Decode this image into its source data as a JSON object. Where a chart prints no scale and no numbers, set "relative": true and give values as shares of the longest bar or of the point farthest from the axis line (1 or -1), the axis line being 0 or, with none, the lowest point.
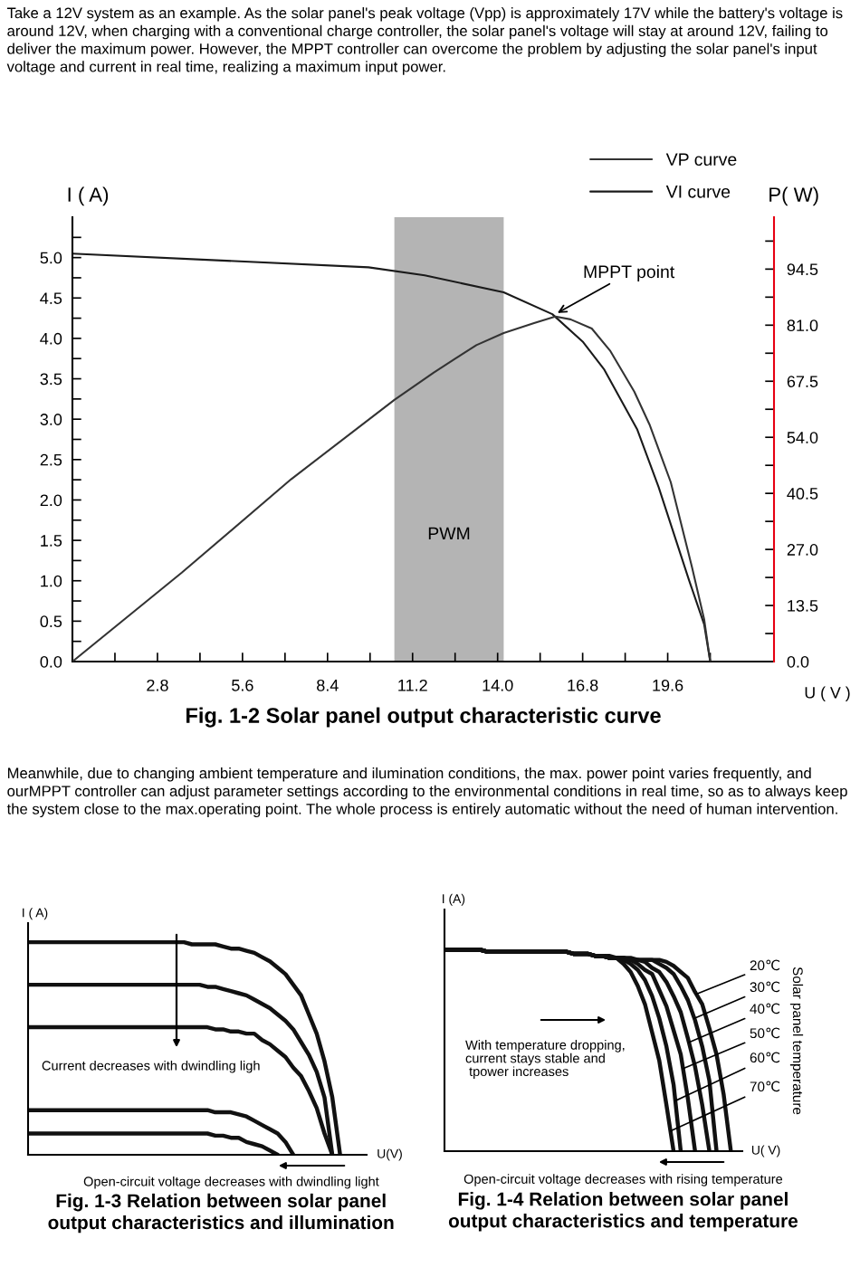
{
  "chart_data": [
    {
      "type": "line",
      "title": "Fig. 1-2 Solar panel output characteristic curve",
      "xlabel": "U ( V )",
      "ylabel": "I ( A)",
      "y2label": "P( W)",
      "xlim": [
        0,
        23.1
      ],
      "xticks": [
        {
          "value": 0,
          "label": null
        },
        {
          "value": 1.4,
          "label": null
        },
        2.8,
        {
          "value": 4.2,
          "label": null
        },
        5.6,
        {
          "value": 7.0,
          "label": null
        },
        8.4,
        {
          "value": 9.8,
          "label": null
        },
        11.2,
        {
          "value": 12.6,
          "label": null
        },
        {
          "value": 14,
          "label": "14.0"
        },
        {
          "value": 15.4,
          "label": null
        },
        16.8,
        {
          "value": 18.2,
          "label": null
        },
        19.6,
        {
          "value": 21.0,
          "label": null
        }
      ],
      "ylim": [
        0,
        5.5
      ],
      "yticks": [
        {
          "value": 0,
          "label": "0.0"
        },
        {
          "value": 0.25,
          "label": null
        },
        0.5,
        {
          "value": 0.75,
          "label": null
        },
        {
          "value": 1,
          "label": "1.0"
        },
        {
          "value": 1.25,
          "label": null
        },
        1.5,
        {
          "value": 1.75,
          "label": null
        },
        {
          "value": 2,
          "label": "2.0"
        },
        {
          "value": 2.25,
          "label": null
        },
        2.5,
        {
          "value": 2.75,
          "label": null
        },
        {
          "value": 3,
          "label": "3.0"
        },
        {
          "value": 3.25,
          "label": null
        },
        3.5,
        {
          "value": 3.75,
          "label": null
        },
        {
          "value": 4,
          "label": "4.0"
        },
        {
          "value": 4.25,
          "label": null
        },
        4.5,
        {
          "value": 4.75,
          "label": null
        },
        {
          "value": 5,
          "label": "5.0"
        },
        {
          "value": 5.25,
          "label": null
        }
      ],
      "y2lim": [
        0,
        107
      ],
      "y2ticks": [
        {
          "value": 0,
          "label": "0.0"
        },
        {
          "value": 6.75,
          "label": null
        },
        13.5,
        {
          "value": 20.25,
          "label": null
        },
        {
          "value": 27,
          "label": "27.0"
        },
        {
          "value": 33.75,
          "label": null
        },
        40.5,
        {
          "value": 47.25,
          "label": null
        },
        {
          "value": 54,
          "label": "54.0"
        },
        {
          "value": 60.75,
          "label": null
        },
        67.5,
        {
          "value": 74.25,
          "label": null
        },
        {
          "value": 81,
          "label": "81.0"
        },
        {
          "value": 87.75,
          "label": null
        },
        94.5,
        {
          "value": 101.25,
          "label": null
        }
      ],
      "legend": "top right",
      "bands": [
        {
          "axis": "x",
          "from": 10.6,
          "to": 14.2,
          "label": "PWM",
          "color": "#b4b4b4"
        }
      ],
      "annotations": [
        "Take a 12V system as an example. As the solar panel's peak voltage (Vpp) is approximately 17V while the battery's voltage is around 12V, when charging with a conventional charge controller, the solar panel's voltage will stay at around 12V, failing to deliver the maximum power. However, the MPPT controller can overcome the problem by adjusting the solar panel's input voltage and current in real time, realizing a maximum input power.",
        {
          "text": "MPPT point",
          "x": 15.9,
          "y": 4.3
        }
      ],
      "series": [
        {
          "name": "VP curve",
          "color": "#333333",
          "axis": "y2",
          "x": [
            0,
            3.6,
            7.2,
            10.6,
            11.9,
            12.6,
            13.3,
            14.2,
            15.2,
            15.9,
            16.4,
            17.1,
            17.7,
            18.5,
            19.0,
            19.7,
            20.4,
            20.8,
            21.0
          ],
          "values": [
            0,
            21.4,
            43.9,
            63.0,
            69.6,
            72.9,
            76.2,
            79.1,
            81.5,
            83.1,
            82.4,
            80.2,
            74.9,
            65.0,
            57.1,
            43.2,
            22.7,
            10.2,
            0
          ]
        },
        {
          "name": "VI curve",
          "color": "#1a1a1a",
          "x": [
            0,
            9.75,
            11.6,
            14.2,
            15.8,
            16.8,
            17.5,
            18.6,
            19.3,
            20.3,
            20.8,
            21.0
          ],
          "values": [
            5.05,
            4.88,
            4.78,
            4.57,
            4.3,
            3.96,
            3.62,
            2.87,
            2.16,
            1.01,
            0.46,
            0
          ]
        }
      ]
    },
    {
      "type": "line",
      "relative": true,
      "title": "Fig. 1-3 Relation between solar panel\noutput characteristics and illumination",
      "xlabel": "U(V)",
      "ylabel": "I ( A)",
      "categories": [
        null,
        null,
        null,
        null,
        null,
        null,
        null,
        null,
        null,
        null,
        null,
        null,
        null,
        null,
        null,
        null,
        null,
        null,
        null,
        null,
        null,
        null,
        null,
        null,
        null,
        null,
        null,
        null,
        null,
        null,
        null,
        null,
        null,
        null,
        null,
        null,
        null,
        null,
        null,
        null,
        null
      ],
      "annotations": [
        "Meanwhile, due to changing ambient temperature and ilumination conditions, the max. power point varies frequently, and ourMPPT controller can adjust parameter settings according to the environmental conditions in real time, so as to always keep the system close to the max.operating point. The whole process is entirely automatic without the need of human intervention.",
        "Current decreases with dwindling ligh",
        "Open-circuit voltage decreases with dwindling light"
      ],
      "series": [
        {
          "color": "#111111",
          "values": [
            1.0,
            1.0,
            1.0,
            1.0,
            1.0,
            1.0,
            1.0,
            1.0,
            1.0,
            1.0,
            1.0,
            1.0,
            1.0,
            1.0,
            1.0,
            1.0,
            1.0,
            1.0,
            1.0,
            1.0,
            1.0,
            0.99,
            0.99,
            0.99,
            0.99,
            0.98,
            0.97,
            0.97,
            0.96,
            0.95,
            0.93,
            0.91,
            0.88,
            0.85,
            0.8,
            0.75,
            0.66,
            0.57,
            0.44,
            0.27,
            0.0
          ]
        },
        {
          "color": "#111111",
          "values": [
            0.8,
            0.8,
            0.8,
            0.8,
            0.8,
            0.8,
            0.8,
            0.8,
            0.8,
            0.8,
            0.8,
            0.8,
            0.8,
            0.8,
            0.8,
            0.8,
            0.8,
            0.8,
            0.8,
            0.8,
            0.8,
            0.8,
            0.8,
            0.79,
            0.79,
            0.78,
            0.77,
            0.76,
            0.75,
            0.73,
            0.71,
            0.69,
            0.66,
            0.63,
            0.59,
            0.53,
            0.47,
            0.39,
            0.27,
            0,
            null
          ]
        },
        {
          "color": "#111111",
          "values": [
            0.6,
            0.6,
            0.6,
            0.6,
            0.6,
            0.6,
            0.6,
            0.6,
            0.6,
            0.6,
            0.6,
            0.6,
            0.6,
            0.6,
            0.6,
            0.6,
            0.6,
            0.6,
            0.6,
            0.6,
            0.6,
            0.6,
            0.6,
            0.6,
            0.59,
            0.59,
            0.58,
            0.58,
            0.57,
            0.57,
            0.54,
            0.52,
            0.49,
            0.46,
            0.41,
            0.37,
            0.3,
            0.22,
            0.1,
            0,
            null
          ]
        },
        {
          "color": "#111111",
          "values": [
            0.21,
            0.21,
            0.21,
            0.21,
            0.21,
            0.21,
            0.21,
            0.21,
            0.21,
            0.21,
            0.21,
            0.21,
            0.21,
            0.21,
            0.21,
            0.21,
            0.21,
            0.21,
            0.21,
            0.21,
            0.21,
            0.21,
            0.21,
            0.21,
            0.2,
            0.2,
            0.2,
            0.19,
            0.18,
            0.16,
            0.14,
            0.12,
            0.1,
            0.06,
            0,
            null,
            null,
            null,
            null,
            null,
            null
          ]
        },
        {
          "color": "#111111",
          "values": [
            0.1,
            0.1,
            0.1,
            0.1,
            0.1,
            0.1,
            0.1,
            0.1,
            0.1,
            0.1,
            0.1,
            0.1,
            0.1,
            0.1,
            0.1,
            0.1,
            0.1,
            0.1,
            0.1,
            0.1,
            0.1,
            0.1,
            0.1,
            0.1,
            0.09,
            0.09,
            0.08,
            0.08,
            0.06,
            0.05,
            0.04,
            0.02,
            0,
            null,
            null,
            null,
            null,
            null,
            null,
            null,
            null
          ]
        }
      ]
    },
    {
      "type": "line",
      "relative": true,
      "title": "Fig. 1-4 Relation between solar panel\noutput characteristics and temperature",
      "xlabel": "U( V)",
      "ylabel": "I (A)",
      "legend_title": "Solar panel temperature",
      "categories": [
        null,
        null,
        null,
        null,
        null,
        null,
        null,
        null,
        null,
        null,
        null,
        null,
        null,
        null,
        null,
        null,
        null,
        null,
        null,
        null,
        null,
        null,
        null,
        null,
        null,
        null,
        null,
        null,
        null,
        null,
        null,
        null,
        null,
        null,
        null,
        null,
        null,
        null,
        null,
        null,
        null
      ],
      "annotations": [
        "With temperature dropping,\ncurrent stays stable and\n tpower increases",
        "Open-circuit voltage decreases with rising temperature"
      ],
      "series": [
        {
          "name": "20℃",
          "color": "#111111",
          "values": [
            1.0,
            1.0,
            1.0,
            1.0,
            1.0,
            1.0,
            0.99,
            0.99,
            0.99,
            0.99,
            0.99,
            0.99,
            0.99,
            0.99,
            0.99,
            0.99,
            0.99,
            0.99,
            0.98,
            0.98,
            0.98,
            0.97,
            0.97,
            0.97,
            0.96,
            0.96,
            0.96,
            0.95,
            0.95,
            0.95,
            0.95,
            0.94,
            0.92,
            0.89,
            0.86,
            0.79,
            0.73,
            0.61,
            0.48,
            0.28,
            0
          ]
        },
        {
          "name": "30℃",
          "color": "#111111",
          "values": [
            1.0,
            1.0,
            1.0,
            1.0,
            1.0,
            1.0,
            0.99,
            0.99,
            0.99,
            0.99,
            0.99,
            0.99,
            0.99,
            0.99,
            0.99,
            0.99,
            0.99,
            0.99,
            0.98,
            0.98,
            0.98,
            0.97,
            0.97,
            0.96,
            0.96,
            0.96,
            0.95,
            0.95,
            0.95,
            0.95,
            0.93,
            0.91,
            0.88,
            0.82,
            0.75,
            0.65,
            0.52,
            0.35,
            0,
            null,
            null
          ]
        },
        {
          "name": "40℃",
          "color": "#111111",
          "values": [
            1.0,
            1.0,
            1.0,
            1.0,
            1.0,
            1.0,
            0.99,
            0.99,
            0.99,
            0.99,
            0.99,
            0.99,
            0.99,
            0.99,
            0.99,
            0.99,
            0.99,
            0.99,
            0.98,
            0.98,
            0.98,
            0.97,
            0.97,
            0.96,
            0.96,
            0.96,
            0.95,
            0.95,
            0.94,
            0.91,
            0.89,
            0.84,
            0.77,
            0.69,
            0.56,
            0.42,
            0.23,
            0,
            null,
            null,
            null
          ]
        },
        {
          "name": "50℃",
          "color": "#111111",
          "values": [
            1.0,
            1.0,
            1.0,
            1.0,
            1.0,
            1.0,
            0.99,
            0.99,
            0.99,
            0.99,
            0.99,
            0.99,
            0.99,
            0.99,
            0.99,
            0.99,
            0.99,
            0.99,
            0.98,
            0.98,
            0.98,
            0.97,
            0.97,
            0.96,
            0.96,
            0.95,
            0.95,
            0.93,
            0.9,
            0.88,
            0.8,
            0.72,
            0.6,
            0.48,
            0.26,
            0,
            null,
            null,
            null,
            null,
            null
          ]
        },
        {
          "name": "60℃",
          "color": "#111111",
          "values": [
            1.0,
            1.0,
            1.0,
            1.0,
            1.0,
            1.0,
            0.99,
            0.99,
            0.99,
            0.99,
            0.99,
            0.99,
            0.99,
            0.99,
            0.99,
            0.99,
            0.99,
            0.99,
            0.98,
            0.98,
            0.98,
            0.97,
            0.97,
            0.96,
            0.96,
            0.95,
            0.93,
            0.9,
            0.85,
            0.77,
            0.66,
            0.52,
            0.33,
            0,
            null,
            null,
            null,
            null,
            null,
            null,
            null
          ]
        },
        {
          "name": "70℃",
          "color": "#111111",
          "values": [
            1.0,
            1.0,
            1.0,
            1.0,
            1.0,
            1.0,
            0.99,
            0.99,
            0.99,
            0.99,
            0.99,
            0.99,
            0.99,
            0.99,
            0.99,
            0.99,
            0.99,
            0.99,
            0.98,
            0.98,
            0.98,
            0.97,
            0.97,
            0.96,
            0.96,
            0.93,
            0.89,
            0.82,
            0.73,
            0.59,
            0.45,
            0.23,
            0,
            null,
            null,
            null,
            null,
            null,
            null,
            null,
            null
          ]
        }
      ]
    }
  ]
}
